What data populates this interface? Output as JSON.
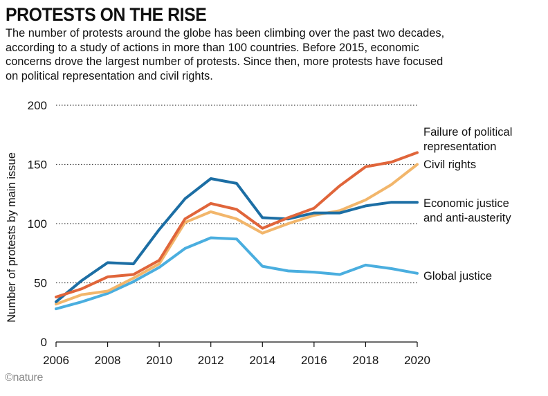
{
  "header": {
    "title": "PROTESTS ON THE RISE",
    "subtitle": "The number of protests around the globe has been climbing over the past two decades, according to a study of actions in more than 100 countries. Before 2015, economic concerns drove the largest number of protests. Since then, more protests have focused on political representation and civil rights."
  },
  "footer": {
    "credit": "©nature"
  },
  "chart_data": {
    "type": "line",
    "title": "PROTESTS ON THE RISE",
    "xlabel": "",
    "ylabel": "Number of protests by main issue",
    "x": [
      2006,
      2007,
      2008,
      2009,
      2010,
      2011,
      2012,
      2013,
      2014,
      2015,
      2016,
      2017,
      2018,
      2019,
      2020
    ],
    "xticks": [
      "2006",
      "2008",
      "2010",
      "2012",
      "2014",
      "2016",
      "2018",
      "2020"
    ],
    "yticks": [
      "0",
      "50",
      "100",
      "150",
      "200"
    ],
    "xlim": [
      2006,
      2020
    ],
    "ylim": [
      0,
      200
    ],
    "grid": "horizontal dotted",
    "legend": "direct labels at right end of lines",
    "series": [
      {
        "name": "Global justice",
        "color": "#4aaedf",
        "values": [
          28,
          34,
          41,
          51,
          63,
          79,
          88,
          87,
          64,
          60,
          59,
          57,
          65,
          62,
          58
        ]
      },
      {
        "name": "Civil rights",
        "color": "#f2b66b",
        "values": [
          32,
          40,
          43,
          54,
          66,
          101,
          110,
          104,
          92,
          100,
          107,
          111,
          120,
          133,
          150
        ]
      },
      {
        "name": "Economic justice and anti-austerity",
        "color": "#1c6ea4",
        "values": [
          34,
          52,
          67,
          66,
          95,
          121,
          138,
          134,
          105,
          104,
          109,
          109,
          115,
          118,
          118
        ]
      },
      {
        "name": "Failure of political representation",
        "color": "#e0653a",
        "values": [
          38,
          45,
          55,
          57,
          69,
          104,
          117,
          112,
          96,
          105,
          113,
          132,
          148,
          152,
          160
        ]
      }
    ],
    "series_labels": [
      {
        "series": "Failure of political representation",
        "lines": [
          "Failure of political",
          "representation"
        ]
      },
      {
        "series": "Civil rights",
        "lines": [
          "Civil rights"
        ]
      },
      {
        "series": "Economic justice and anti-austerity",
        "lines": [
          "Economic justice",
          "and anti-austerity"
        ]
      },
      {
        "series": "Global justice",
        "lines": [
          "Global justice"
        ]
      }
    ]
  }
}
